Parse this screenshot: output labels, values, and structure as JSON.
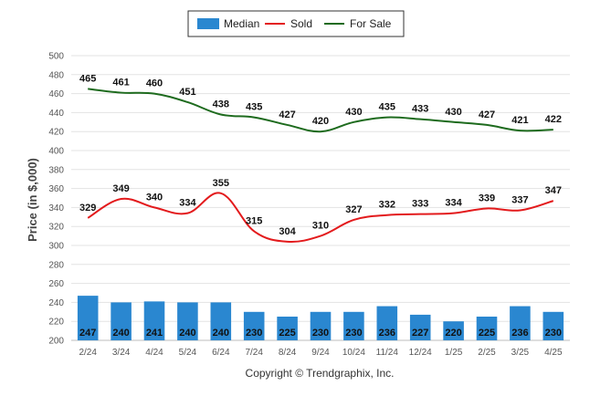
{
  "chart_data": {
    "type": "bar+line",
    "ylabel": "Price (in $,000)",
    "ylim": [
      200,
      500
    ],
    "ystep": 20,
    "grid": true,
    "legend_position": "top-center",
    "categories": [
      "2/24",
      "3/24",
      "4/24",
      "5/24",
      "6/24",
      "7/24",
      "8/24",
      "9/24",
      "10/24",
      "11/24",
      "12/24",
      "1/25",
      "2/25",
      "3/25",
      "4/25"
    ],
    "series": [
      {
        "name": "Median",
        "kind": "bar",
        "color": "#2a87d0",
        "values": [
          247,
          240,
          241,
          240,
          240,
          230,
          225,
          230,
          230,
          236,
          227,
          220,
          225,
          236,
          230
        ]
      },
      {
        "name": "Sold",
        "kind": "line",
        "color": "#e31a1c",
        "values": [
          329,
          349,
          340,
          334,
          355,
          315,
          304,
          310,
          327,
          332,
          333,
          334,
          339,
          337,
          347
        ]
      },
      {
        "name": "For Sale",
        "kind": "line",
        "color": "#1e6b1e",
        "values": [
          465,
          461,
          460,
          451,
          438,
          435,
          427,
          420,
          430,
          435,
          433,
          430,
          427,
          421,
          422
        ]
      }
    ],
    "footer": "Copyright © Trendgraphix, Inc."
  }
}
